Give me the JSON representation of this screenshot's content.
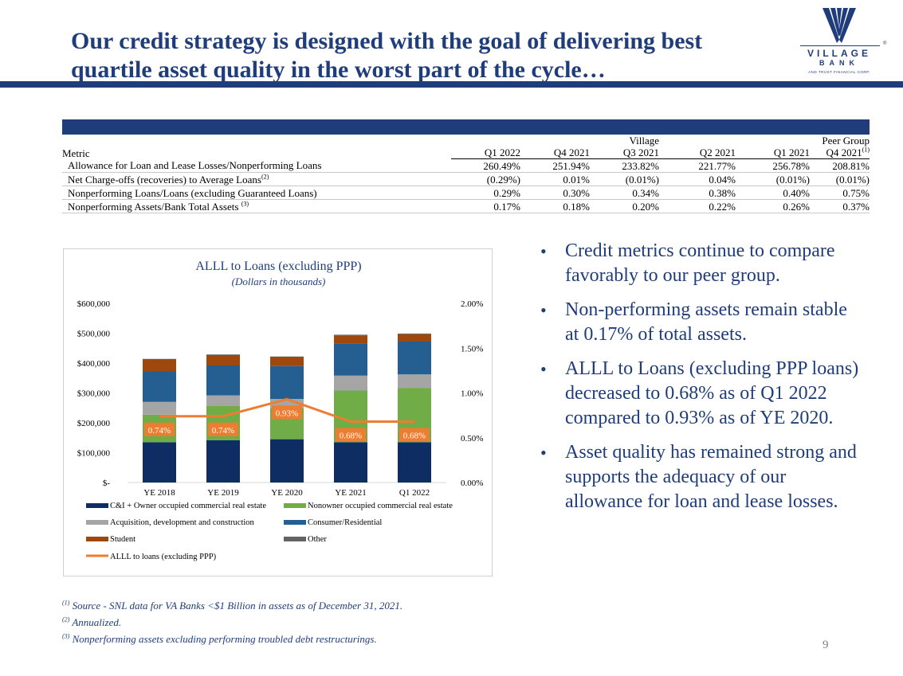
{
  "title": "Our credit strategy is designed with the goal of delivering best quartile asset quality in the worst part of the cycle…",
  "logo": {
    "line1": "VILLAGE",
    "line2": "BANK",
    "line3": "AND TRUST FINANCIAL CORP.",
    "reg": "®"
  },
  "table": {
    "group_village": "Village",
    "group_peer": "Peer Group",
    "col_metric": "Metric",
    "columns": [
      "Q1 2022",
      "Q4 2021",
      "Q3 2021",
      "Q2 2021",
      "Q1 2021",
      "Q4 2021"
    ],
    "peer_sup": "(1)",
    "rows": [
      {
        "label": "Allowance for Loan and Lease Losses/Nonperforming Loans",
        "sup": "",
        "values": [
          "260.49%",
          "251.94%",
          "233.82%",
          "221.77%",
          "256.78%",
          "208.81%"
        ]
      },
      {
        "label": "Net Charge-offs (recoveries) to Average Loans",
        "sup": "(2)",
        "values": [
          "(0.29%)",
          "0.01%",
          "(0.01%)",
          "0.04%",
          "(0.01%)",
          "(0.01%)"
        ]
      },
      {
        "label": "Nonperforming Loans/Loans (excluding Guaranteed Loans)",
        "sup": "",
        "values": [
          "0.29%",
          "0.30%",
          "0.34%",
          "0.38%",
          "0.40%",
          "0.75%"
        ]
      },
      {
        "label": "Nonperforming Assets/Bank Total Assets",
        "sup": "(3)",
        "values": [
          "0.17%",
          "0.18%",
          "0.20%",
          "0.22%",
          "0.26%",
          "0.37%"
        ]
      }
    ]
  },
  "chart_data": {
    "type": "bar",
    "stacked": true,
    "title": "ALLL to Loans (excluding PPP)",
    "subtitle": "(Dollars in thousands)",
    "categories": [
      "YE 2018",
      "YE 2019",
      "YE 2020",
      "YE 2021",
      "Q1 2022"
    ],
    "ylim": [
      0,
      600000
    ],
    "yticks": [
      0,
      100000,
      200000,
      300000,
      400000,
      500000,
      600000
    ],
    "ytick_labels": [
      "$-",
      "$100,000",
      "$200,000",
      "$300,000",
      "$400,000",
      "$500,000",
      "$600,000"
    ],
    "y2lim": [
      0,
      2.0
    ],
    "y2ticks": [
      0,
      0.5,
      1.0,
      1.5,
      2.0
    ],
    "y2tick_labels": [
      "0.00%",
      "0.50%",
      "1.00%",
      "1.50%",
      "2.00%"
    ],
    "series": [
      {
        "name": "C&I + Owner occupied commercial real estate",
        "color": "#0e2e63",
        "values": [
          135000,
          142000,
          145000,
          135000,
          135000
        ]
      },
      {
        "name": "Nonowner occupied commercial real estate",
        "color": "#70ad47",
        "values": [
          92000,
          115000,
          105000,
          173000,
          182000
        ]
      },
      {
        "name": "Acquisition, development and construction",
        "color": "#a5a5a5",
        "values": [
          43000,
          35000,
          30000,
          50000,
          45000
        ]
      },
      {
        "name": "Consumer/Residential",
        "color": "#255e91",
        "values": [
          102000,
          100000,
          110000,
          107000,
          110000
        ]
      },
      {
        "name": "Student",
        "color": "#9e480e",
        "values": [
          40000,
          35000,
          30000,
          28000,
          25000
        ]
      },
      {
        "name": "Other",
        "color": "#636363",
        "values": [
          2000,
          2000,
          2000,
          2000,
          2000
        ]
      }
    ],
    "line": {
      "name": "ALLL to loans (excluding PPP)",
      "color": "#ed7d31",
      "axis": "secondary",
      "values": [
        0.74,
        0.74,
        0.93,
        0.68,
        0.68
      ],
      "labels": [
        "0.74%",
        "0.74%",
        "0.93%",
        "0.68%",
        "0.68%"
      ]
    },
    "legend_position": "bottom"
  },
  "bullets": [
    "Credit metrics continue to compare favorably to our peer group.",
    "Non-performing assets remain stable at 0.17% of total assets.",
    "ALLL to Loans (excluding PPP loans) decreased to 0.68% as of Q1 2022 compared to 0.93% as of YE 2020.",
    "Asset quality has remained strong and supports the adequacy of our allowance for loan and lease losses."
  ],
  "bullet_char": "•",
  "footnotes": [
    {
      "sup": "(1)",
      "text": " Source - SNL data for VA Banks <$1 Billion in assets as of December 31, 2021."
    },
    {
      "sup": "(2)",
      "text": " Annualized."
    },
    {
      "sup": "(3)",
      "text": " Nonperforming assets excluding performing troubled debt restructurings."
    }
  ],
  "page_number": "9"
}
